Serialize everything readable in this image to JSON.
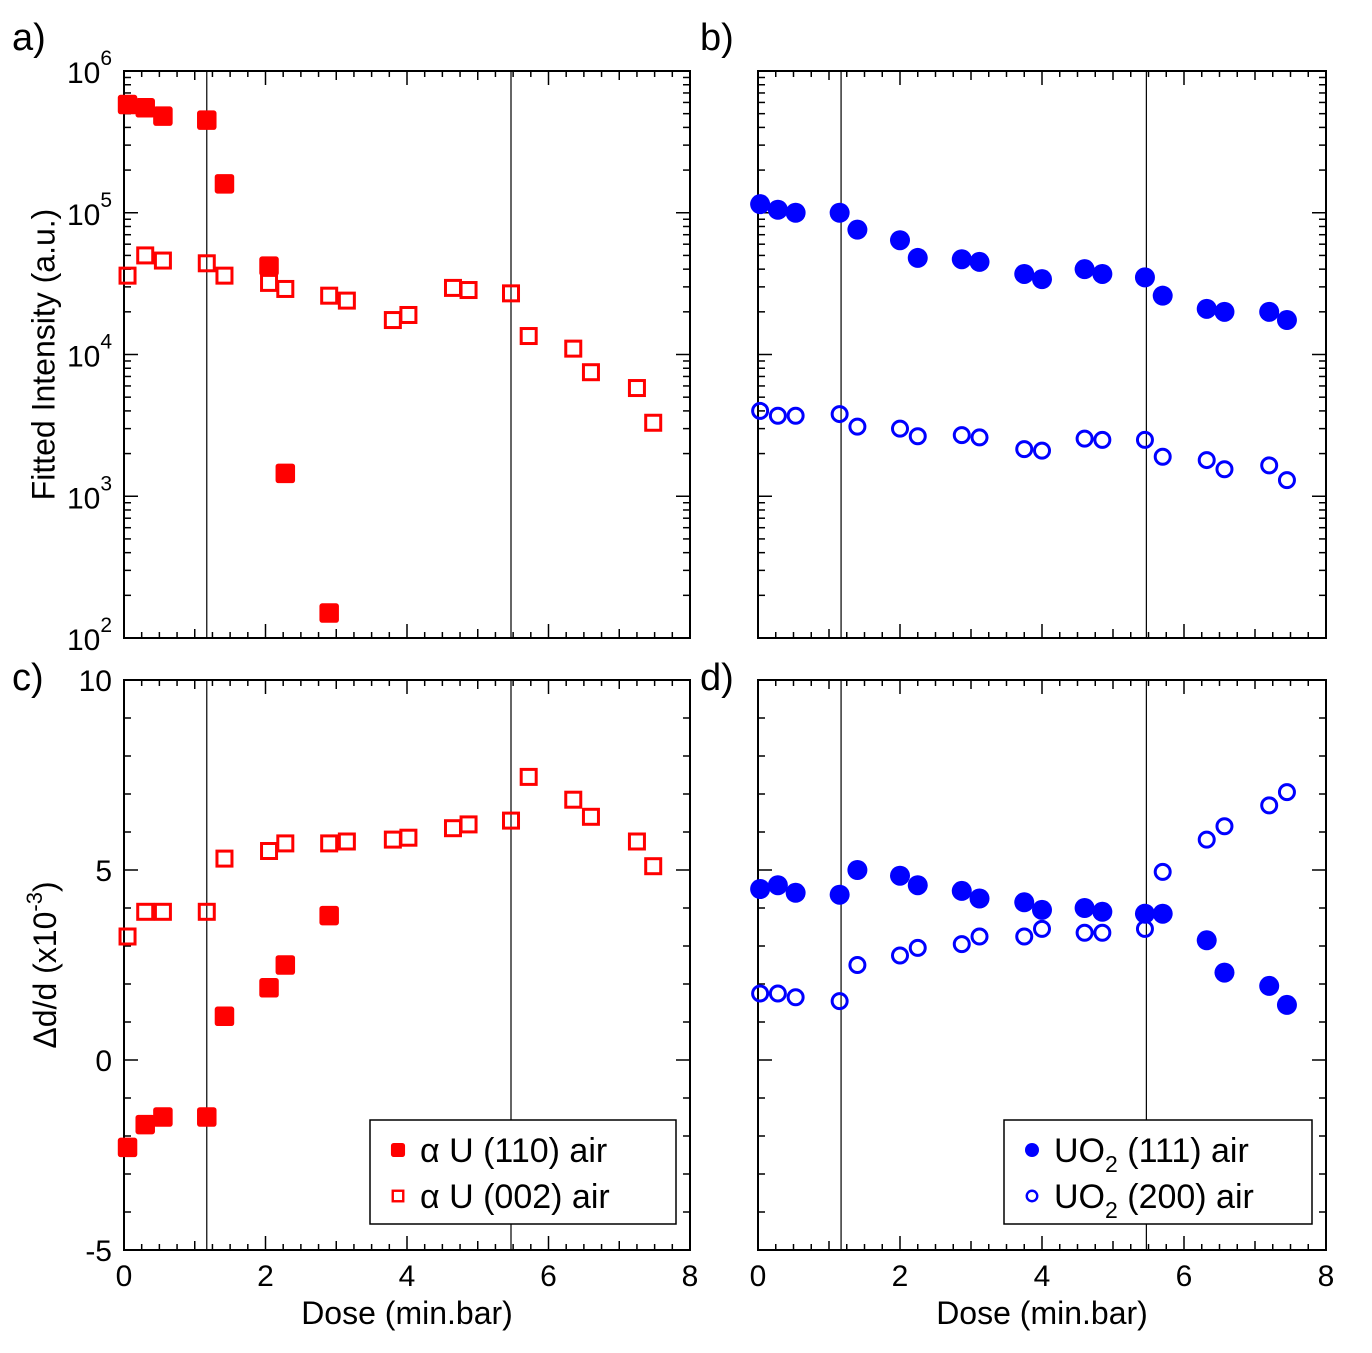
{
  "colors": {
    "red": "#ff0000",
    "blue": "#0000ff"
  },
  "chart_data": [
    {
      "panel": "a)",
      "type": "scatter",
      "yscale": "log",
      "xlim": [
        0,
        8
      ],
      "ylim": [
        100,
        1000000
      ],
      "xlabel": "",
      "ylabel": "Fitted Intensity (a.u.)",
      "x_ticks": [],
      "y_ticks": [
        {
          "value": 100,
          "base": "10",
          "exp": "2"
        },
        {
          "value": 1000,
          "base": "10",
          "exp": "3"
        },
        {
          "value": 10000,
          "base": "10",
          "exp": "4"
        },
        {
          "value": 100000,
          "base": "10",
          "exp": "5"
        },
        {
          "value": 1000000,
          "base": "10",
          "exp": "6"
        }
      ],
      "vlines": [
        1.17,
        5.47
      ],
      "series": [
        {
          "name": "α U (110) air",
          "marker": "filled-square",
          "color": "#ff0000",
          "x": [
            0.05,
            0.3,
            0.55,
            1.17,
            1.42,
            2.05,
            2.28,
            2.9
          ],
          "y": [
            580000,
            550000,
            480000,
            450000,
            160000,
            42000,
            1450,
            150
          ]
        },
        {
          "name": "α U (002) air",
          "marker": "open-square",
          "color": "#ff0000",
          "x": [
            0.05,
            0.3,
            0.55,
            1.17,
            1.42,
            2.05,
            2.28,
            2.9,
            3.15,
            3.8,
            4.02,
            4.65,
            4.87,
            5.47,
            5.72,
            6.35,
            6.6,
            7.25,
            7.48
          ],
          "y": [
            36000,
            50000,
            46000,
            44000,
            36000,
            32000,
            29000,
            26000,
            24000,
            17500,
            19000,
            29500,
            28500,
            27000,
            13500,
            11000,
            7500,
            5800,
            3300
          ]
        }
      ]
    },
    {
      "panel": "b)",
      "type": "scatter",
      "yscale": "log",
      "xlim": [
        0,
        8
      ],
      "ylim": [
        100,
        1000000
      ],
      "xlabel": "",
      "ylabel": "",
      "x_ticks": [],
      "y_ticks": [],
      "vlines": [
        1.17,
        5.47
      ],
      "series": [
        {
          "name": "UO2 (111) air",
          "marker": "filled-circle",
          "color": "#0000ff",
          "x": [
            0.03,
            0.28,
            0.53,
            1.15,
            1.4,
            2.0,
            2.25,
            2.87,
            3.12,
            3.75,
            4.0,
            4.6,
            4.85,
            5.45,
            5.7,
            6.32,
            6.57,
            7.2,
            7.45
          ],
          "y": [
            115000,
            105000,
            100000,
            100000,
            76000,
            64000,
            48000,
            47000,
            45000,
            37000,
            34000,
            40000,
            37000,
            35000,
            26000,
            21000,
            20000,
            20000,
            17500
          ]
        },
        {
          "name": "UO2 (200) air",
          "marker": "open-circle",
          "color": "#0000ff",
          "x": [
            0.03,
            0.28,
            0.53,
            1.15,
            1.4,
            2.0,
            2.25,
            2.87,
            3.12,
            3.75,
            4.0,
            4.6,
            4.85,
            5.45,
            5.7,
            6.32,
            6.57,
            7.2,
            7.45
          ],
          "y": [
            4000,
            3700,
            3700,
            3800,
            3100,
            3000,
            2650,
            2700,
            2600,
            2150,
            2100,
            2550,
            2500,
            2500,
            1900,
            1800,
            1550,
            1650,
            1300
          ]
        }
      ]
    },
    {
      "panel": "c)",
      "type": "scatter",
      "yscale": "linear",
      "xlim": [
        0,
        8
      ],
      "ylim": [
        -5,
        10
      ],
      "xlabel": "Dose (min.bar)",
      "ylabel_parts": [
        "Δd/d (x10",
        "-3",
        ")"
      ],
      "x_ticks": [
        {
          "value": 0,
          "label": "0"
        },
        {
          "value": 2,
          "label": "2"
        },
        {
          "value": 4,
          "label": "4"
        },
        {
          "value": 6,
          "label": "6"
        },
        {
          "value": 8,
          "label": "8"
        }
      ],
      "y_ticks": [
        {
          "value": -5,
          "label": "-5"
        },
        {
          "value": 0,
          "label": "0"
        },
        {
          "value": 5,
          "label": "5"
        },
        {
          "value": 10,
          "label": "10"
        }
      ],
      "vlines": [
        1.17,
        5.47
      ],
      "legend": {
        "position": "bottom-right",
        "entries": [
          {
            "marker": "filled-square",
            "greek": "α",
            "text": "U (110) air"
          },
          {
            "marker": "open-square",
            "greek": "α",
            "text": "U (002) air"
          }
        ]
      },
      "series": [
        {
          "name": "α U (110) air",
          "marker": "filled-square",
          "color": "#ff0000",
          "x": [
            0.05,
            0.3,
            0.55,
            1.17,
            1.42,
            2.05,
            2.28,
            2.9
          ],
          "y": [
            -2.3,
            -1.7,
            -1.5,
            -1.5,
            1.15,
            1.9,
            2.5,
            3.8
          ]
        },
        {
          "name": "α U (002) air",
          "marker": "open-square",
          "color": "#ff0000",
          "x": [
            0.05,
            0.3,
            0.55,
            1.17,
            1.42,
            2.05,
            2.28,
            2.9,
            3.15,
            3.8,
            4.02,
            4.65,
            4.87,
            5.47,
            5.72,
            6.35,
            6.6,
            7.25,
            7.48
          ],
          "y": [
            3.25,
            3.9,
            3.9,
            3.9,
            5.3,
            5.5,
            5.7,
            5.7,
            5.75,
            5.8,
            5.85,
            6.1,
            6.2,
            6.3,
            7.45,
            6.85,
            6.4,
            5.75,
            5.1
          ]
        }
      ]
    },
    {
      "panel": "d)",
      "type": "scatter",
      "yscale": "linear",
      "xlim": [
        0,
        8
      ],
      "ylim": [
        -5,
        10
      ],
      "xlabel": "Dose (min.bar)",
      "ylabel": "",
      "x_ticks": [
        {
          "value": 0,
          "label": "0"
        },
        {
          "value": 2,
          "label": "2"
        },
        {
          "value": 4,
          "label": "4"
        },
        {
          "value": 6,
          "label": "6"
        },
        {
          "value": 8,
          "label": "8"
        }
      ],
      "y_ticks": [],
      "vlines": [
        1.17,
        5.47
      ],
      "legend": {
        "position": "bottom-right",
        "entries": [
          {
            "marker": "filled-circle",
            "text": "UO",
            "sub": "2",
            "rest": " (111) air"
          },
          {
            "marker": "open-circle",
            "text": "UO",
            "sub": "2",
            "rest": " (200) air"
          }
        ]
      },
      "series": [
        {
          "name": "UO2 (111) air",
          "marker": "filled-circle",
          "color": "#0000ff",
          "x": [
            0.03,
            0.28,
            0.53,
            1.15,
            1.4,
            2.0,
            2.25,
            2.87,
            3.12,
            3.75,
            4.0,
            4.6,
            4.85,
            5.45,
            5.7,
            6.32,
            6.57,
            7.2,
            7.45
          ],
          "y": [
            4.5,
            4.6,
            4.4,
            4.35,
            5.0,
            4.85,
            4.6,
            4.45,
            4.25,
            4.15,
            3.95,
            4.0,
            3.9,
            3.85,
            3.85,
            3.15,
            2.3,
            1.95,
            1.45
          ]
        },
        {
          "name": "UO2 (200) air",
          "marker": "open-circle",
          "color": "#0000ff",
          "x": [
            0.03,
            0.28,
            0.53,
            1.15,
            1.4,
            2.0,
            2.25,
            2.87,
            3.12,
            3.75,
            4.0,
            4.6,
            4.85,
            5.45,
            5.7,
            6.32,
            6.57,
            7.2,
            7.45
          ],
          "y": [
            1.75,
            1.75,
            1.65,
            1.55,
            2.5,
            2.75,
            2.95,
            3.05,
            3.25,
            3.25,
            3.45,
            3.35,
            3.35,
            3.45,
            4.95,
            5.8,
            6.15,
            6.7,
            7.05
          ]
        }
      ]
    }
  ]
}
